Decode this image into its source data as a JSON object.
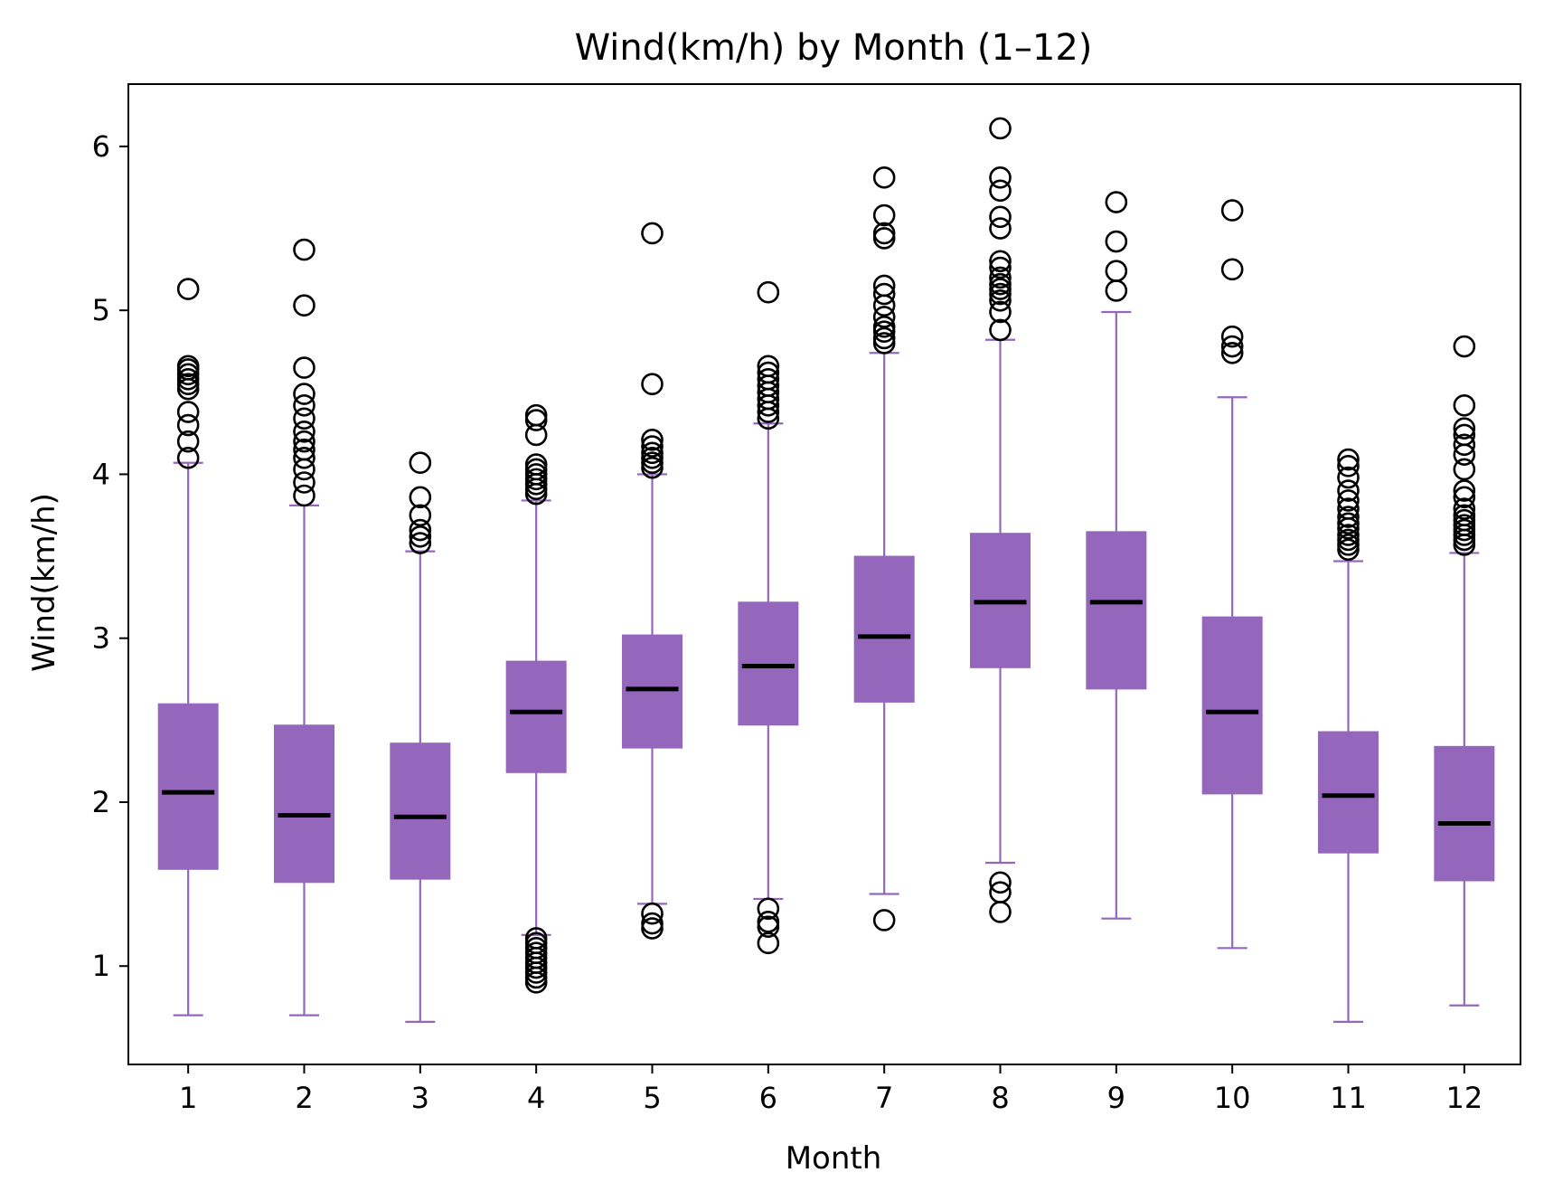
{
  "chart_data": {
    "type": "box",
    "title": "Wind(km/h) by Month (1–12)",
    "xlabel": "Month",
    "ylabel": "Wind(km/h)",
    "categories": [
      "1",
      "2",
      "3",
      "4",
      "5",
      "6",
      "7",
      "8",
      "9",
      "10",
      "11",
      "12"
    ],
    "ylim": [
      0.4,
      6.38
    ],
    "yticks": [
      1,
      2,
      3,
      4,
      5,
      6
    ],
    "grid": false,
    "colors": {
      "box": "#9467bd",
      "median": "#000000",
      "outlier": "#000000"
    },
    "boxes": [
      {
        "month": "1",
        "whislo": 0.7,
        "q1": 1.59,
        "med": 2.06,
        "q3": 2.6,
        "whishi": 4.07,
        "fliers": [
          4.1,
          4.2,
          4.3,
          4.38,
          4.52,
          4.55,
          4.58,
          4.61,
          4.64,
          4.66,
          5.13
        ]
      },
      {
        "month": "2",
        "whislo": 0.7,
        "q1": 1.51,
        "med": 1.92,
        "q3": 2.47,
        "whishi": 3.81,
        "fliers": [
          3.87,
          3.95,
          4.03,
          4.1,
          4.15,
          4.2,
          4.26,
          4.34,
          4.42,
          4.49,
          4.65,
          5.03,
          5.37
        ]
      },
      {
        "month": "3",
        "whislo": 0.66,
        "q1": 1.53,
        "med": 1.91,
        "q3": 2.36,
        "whishi": 3.53,
        "fliers": [
          3.58,
          3.62,
          3.66,
          3.75,
          3.86,
          4.07
        ]
      },
      {
        "month": "4",
        "whislo": 1.19,
        "q1": 2.18,
        "med": 2.55,
        "q3": 2.86,
        "whishi": 3.84,
        "fliers": [
          0.9,
          0.93,
          0.96,
          0.99,
          1.02,
          1.05,
          1.08,
          1.11,
          1.14,
          1.17,
          3.88,
          3.91,
          3.94,
          3.97,
          4.0,
          4.03,
          4.06,
          4.24,
          4.33,
          4.36
        ]
      },
      {
        "month": "5",
        "whislo": 1.38,
        "q1": 2.33,
        "med": 2.69,
        "q3": 3.02,
        "whishi": 4.0,
        "fliers": [
          1.23,
          1.26,
          1.32,
          4.04,
          4.07,
          4.1,
          4.13,
          4.17,
          4.21,
          4.55,
          5.47
        ]
      },
      {
        "month": "6",
        "whislo": 1.41,
        "q1": 2.47,
        "med": 2.83,
        "q3": 3.22,
        "whishi": 4.31,
        "fliers": [
          1.14,
          1.24,
          1.27,
          1.35,
          4.34,
          4.38,
          4.42,
          4.46,
          4.5,
          4.54,
          4.58,
          4.62,
          4.66,
          5.11
        ]
      },
      {
        "month": "7",
        "whislo": 1.44,
        "q1": 2.61,
        "med": 3.01,
        "q3": 3.5,
        "whishi": 4.74,
        "fliers": [
          1.28,
          4.8,
          4.83,
          4.87,
          4.9,
          4.96,
          5.03,
          5.1,
          5.15,
          5.44,
          5.47,
          5.58,
          5.81
        ]
      },
      {
        "month": "8",
        "whislo": 1.63,
        "q1": 2.82,
        "med": 3.22,
        "q3": 3.64,
        "whishi": 4.82,
        "fliers": [
          1.33,
          1.45,
          1.51,
          4.88,
          4.99,
          5.06,
          5.1,
          5.13,
          5.16,
          5.2,
          5.26,
          5.3,
          5.5,
          5.57,
          5.73,
          5.81,
          6.11
        ]
      },
      {
        "month": "9",
        "whislo": 1.29,
        "q1": 2.69,
        "med": 3.22,
        "q3": 3.65,
        "whishi": 4.99,
        "fliers": [
          5.12,
          5.24,
          5.42,
          5.66
        ]
      },
      {
        "month": "10",
        "whislo": 1.11,
        "q1": 2.05,
        "med": 2.55,
        "q3": 3.13,
        "whishi": 4.47,
        "fliers": [
          4.74,
          4.78,
          4.84,
          5.25,
          5.61
        ]
      },
      {
        "month": "11",
        "whislo": 0.66,
        "q1": 1.69,
        "med": 2.04,
        "q3": 2.43,
        "whishi": 3.47,
        "fliers": [
          3.54,
          3.57,
          3.6,
          3.63,
          3.67,
          3.7,
          3.74,
          3.79,
          3.84,
          3.9,
          3.98,
          4.05,
          4.09
        ]
      },
      {
        "month": "12",
        "whislo": 0.76,
        "q1": 1.52,
        "med": 1.87,
        "q3": 2.34,
        "whishi": 3.52,
        "fliers": [
          3.57,
          3.6,
          3.63,
          3.66,
          3.69,
          3.72,
          3.75,
          3.79,
          3.86,
          3.9,
          4.03,
          4.12,
          4.18,
          4.24,
          4.28,
          4.42,
          4.78
        ]
      }
    ]
  }
}
